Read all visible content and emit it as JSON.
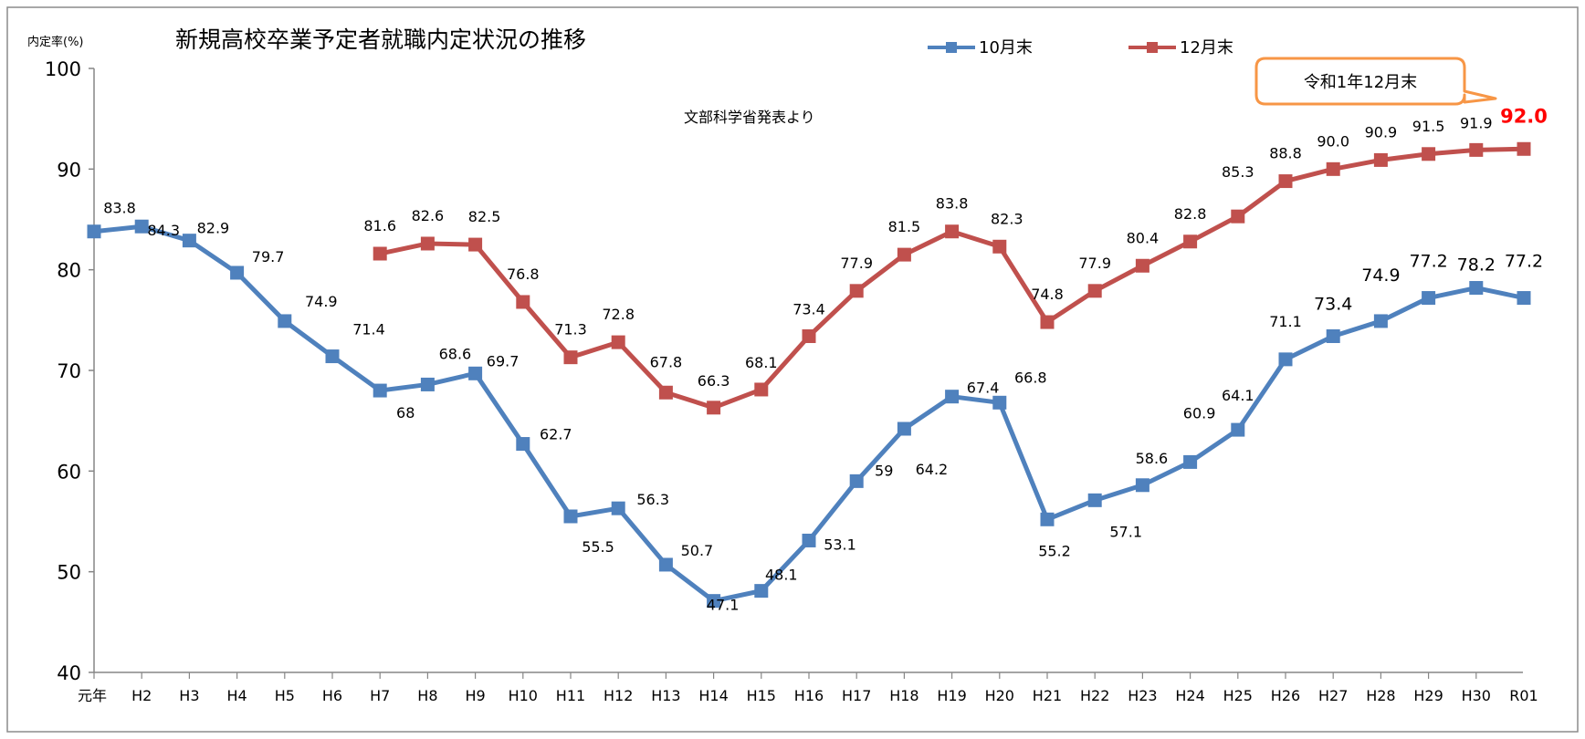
{
  "chart_data": {
    "type": "line",
    "title": "新規高校卒業予定者就職内定状況の推移",
    "subtitle": "文部科学省発表より",
    "ylabel": "内定率(%)",
    "xlabel": "",
    "ylim": [
      40,
      100
    ],
    "yticks": [
      "40",
      "50",
      "60",
      "70",
      "80",
      "90",
      "100"
    ],
    "grid": false,
    "legend_position": "top-right",
    "categories": [
      "元年",
      "H2",
      "H3",
      "H4",
      "H5",
      "H6",
      "H7",
      "H8",
      "H9",
      "H10",
      "H11",
      "H12",
      "H13",
      "H14",
      "H15",
      "H16",
      "H17",
      "H18",
      "H19",
      "H20",
      "H21",
      "H22",
      "H23",
      "H24",
      "H25",
      "H26",
      "H27",
      "H28",
      "H29",
      "H30",
      "R01"
    ],
    "series": [
      {
        "name": "10月末",
        "color": "#4f81bd",
        "values": [
          83.8,
          84.3,
          82.9,
          79.7,
          74.9,
          71.4,
          68,
          68.6,
          69.7,
          62.7,
          55.5,
          56.3,
          50.7,
          47.1,
          48.1,
          53.1,
          59,
          64.2,
          67.4,
          66.8,
          55.2,
          57.1,
          58.6,
          60.9,
          64.1,
          71.1,
          73.4,
          74.9,
          77.2,
          78.2,
          77.2
        ],
        "labels": [
          "83.8",
          "84.3",
          "82.9",
          "79.7",
          "74.9",
          "71.4",
          "68",
          "68.6",
          "69.7",
          "62.7",
          "55.5",
          "56.3",
          "50.7",
          "47.1",
          "48.1",
          "53.1",
          "59",
          "64.2",
          "67.4",
          "66.8",
          "55.2",
          "57.1",
          "58.6",
          "60.9",
          "64.1",
          "71.1",
          "73.4",
          "74.9",
          "77.2",
          "78.2",
          "77.2"
        ]
      },
      {
        "name": "12月末",
        "color": "#c0504d",
        "values": [
          null,
          null,
          null,
          null,
          null,
          null,
          81.6,
          82.6,
          82.5,
          76.8,
          71.3,
          72.8,
          67.8,
          66.3,
          68.1,
          73.4,
          77.9,
          81.5,
          83.8,
          82.3,
          74.8,
          77.9,
          80.4,
          82.8,
          85.3,
          88.8,
          90.0,
          90.9,
          91.5,
          91.9,
          92.0
        ],
        "labels": [
          null,
          null,
          null,
          null,
          null,
          null,
          "81.6",
          "82.6",
          "82.5",
          "76.8",
          "71.3",
          "72.8",
          "67.8",
          "66.3",
          "68.1",
          "73.4",
          "77.9",
          "81.5",
          "83.8",
          "82.3",
          "74.8",
          "77.9",
          "80.4",
          "82.8",
          "85.3",
          "88.8",
          "90.0",
          "90.9",
          "91.5",
          "91.9",
          "92.0"
        ]
      }
    ],
    "callout": {
      "text": "令和1年12月末",
      "border_color": "#f79646",
      "highlight_color": "#ff0000"
    }
  }
}
